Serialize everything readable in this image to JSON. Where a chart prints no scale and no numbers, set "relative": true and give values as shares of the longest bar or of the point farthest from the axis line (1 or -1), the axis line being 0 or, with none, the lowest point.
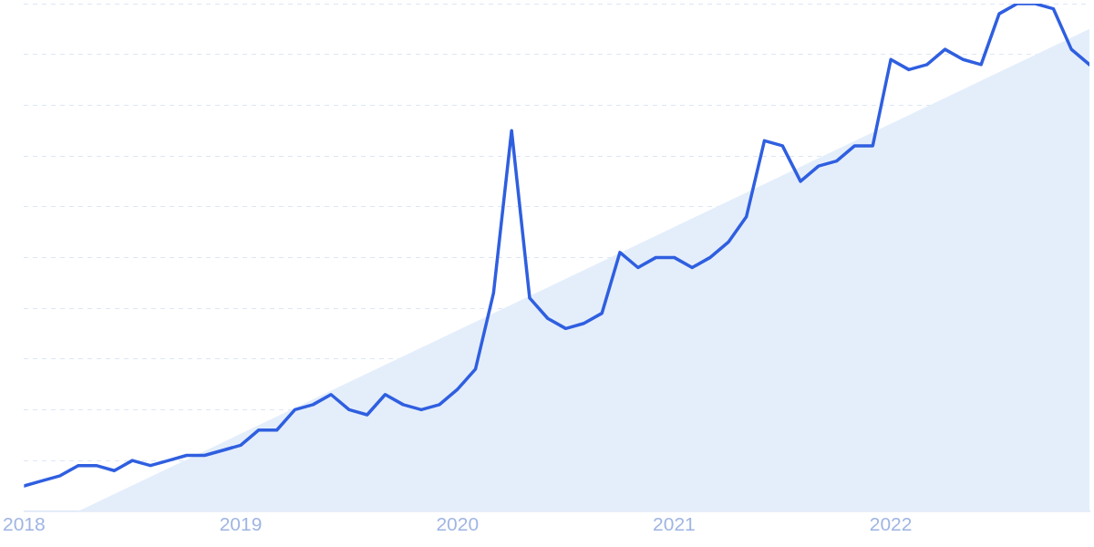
{
  "chart_data": {
    "type": "line",
    "relative": true,
    "x": [
      "2018-01",
      "2018-02",
      "2018-03",
      "2018-04",
      "2018-05",
      "2018-06",
      "2018-07",
      "2018-08",
      "2018-09",
      "2018-10",
      "2018-11",
      "2018-12",
      "2019-01",
      "2019-02",
      "2019-03",
      "2019-04",
      "2019-05",
      "2019-06",
      "2019-07",
      "2019-08",
      "2019-09",
      "2019-10",
      "2019-11",
      "2019-12",
      "2020-01",
      "2020-02",
      "2020-03",
      "2020-04",
      "2020-05",
      "2020-06",
      "2020-07",
      "2020-08",
      "2020-09",
      "2020-10",
      "2020-11",
      "2020-12",
      "2021-01",
      "2021-02",
      "2021-03",
      "2021-04",
      "2021-05",
      "2021-06",
      "2021-07",
      "2021-08",
      "2021-09",
      "2021-10",
      "2021-11",
      "2021-12",
      "2022-01",
      "2022-02",
      "2022-03",
      "2022-04",
      "2022-05",
      "2022-06",
      "2022-07",
      "2022-08",
      "2022-09",
      "2022-10",
      "2022-11",
      "2022-12"
    ],
    "series": [
      {
        "color": "#2f5fe0",
        "values": [
          0.05,
          0.06,
          0.07,
          0.09,
          0.09,
          0.08,
          0.1,
          0.09,
          0.1,
          0.11,
          0.11,
          0.12,
          0.13,
          0.16,
          0.16,
          0.2,
          0.21,
          0.23,
          0.2,
          0.19,
          0.23,
          0.21,
          0.2,
          0.21,
          0.24,
          0.28,
          0.43,
          0.75,
          0.42,
          0.38,
          0.36,
          0.37,
          0.39,
          0.51,
          0.48,
          0.5,
          0.5,
          0.48,
          0.5,
          0.53,
          0.58,
          0.73,
          0.72,
          0.65,
          0.68,
          0.69,
          0.72,
          0.72,
          0.89,
          0.87,
          0.88,
          0.91,
          0.89,
          0.88,
          0.98,
          1,
          1,
          0.99,
          0.91,
          0.88
        ]
      },
      {
        "type": "area",
        "color": "#e4eefb",
        "x": [
          "2018-04",
          "2022-12"
        ],
        "values": [
          0,
          0.95
        ]
      }
    ],
    "xlim": [
      "2018-01",
      "2022-12"
    ],
    "xticks": [
      "2018",
      "2019",
      "2020",
      "2021",
      "2022"
    ],
    "grid": "y",
    "legend": false,
    "marker": "none",
    "line_style": "solid"
  }
}
